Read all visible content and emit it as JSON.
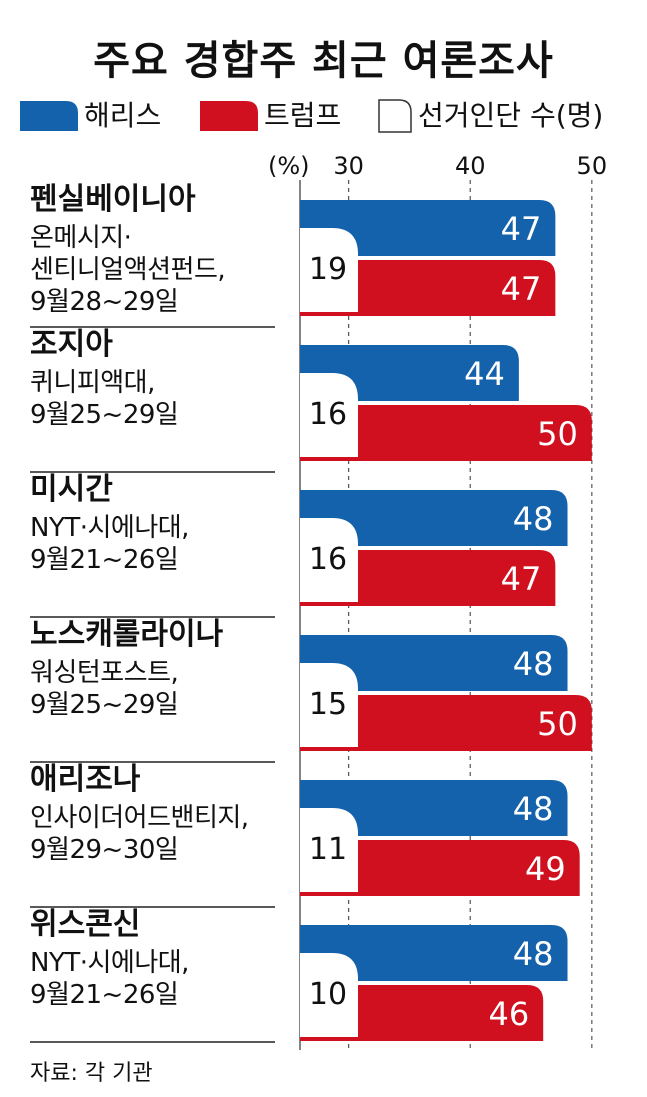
{
  "title": "주요 경합주 최근 여론조사",
  "legend": {
    "harris": "해리스",
    "trump": "트럼프",
    "undecided": "선거인단 수(명)"
  },
  "axis_unit": "(%)",
  "source_note": "자료: 각 기관",
  "colors": {
    "harris": "#1462ac",
    "trump": "#d0101f",
    "divider": "#222222",
    "grid": "#555555"
  },
  "chart_data": {
    "type": "bar",
    "title": "주요 경합주 최근 여론조사",
    "xlabel": "(%)",
    "ticks": [
      30,
      40,
      50
    ],
    "xlim": [
      26,
      51
    ],
    "series": [
      {
        "name": "해리스",
        "values": [
          47,
          44,
          48,
          48,
          48,
          48
        ]
      },
      {
        "name": "트럼프",
        "values": [
          47,
          50,
          47,
          50,
          49,
          46
        ]
      }
    ],
    "categories": [
      "펜실베이니아",
      "조지아",
      "미시간",
      "노스캐롤라이나",
      "애리조나",
      "위스콘신"
    ],
    "electoral_votes": [
      19,
      16,
      16,
      15,
      11,
      10
    ],
    "polls": [
      {
        "source": "온메시지·",
        "source2": "센티니얼액션펀드,",
        "date": "9월28~29일"
      },
      {
        "source": "퀴니피액대,",
        "source2": "",
        "date": "9월25~29일"
      },
      {
        "source": "NYT·시에나대,",
        "source2": "",
        "date": "9월21~26일"
      },
      {
        "source": "워싱턴포스트,",
        "source2": "",
        "date": "9월25~29일"
      },
      {
        "source": "인사이더어드밴티지,",
        "source2": "",
        "date": "9월29~30일"
      },
      {
        "source": "NYT·시에나대,",
        "source2": "",
        "date": "9월21~26일"
      }
    ],
    "legend_position": "top"
  }
}
